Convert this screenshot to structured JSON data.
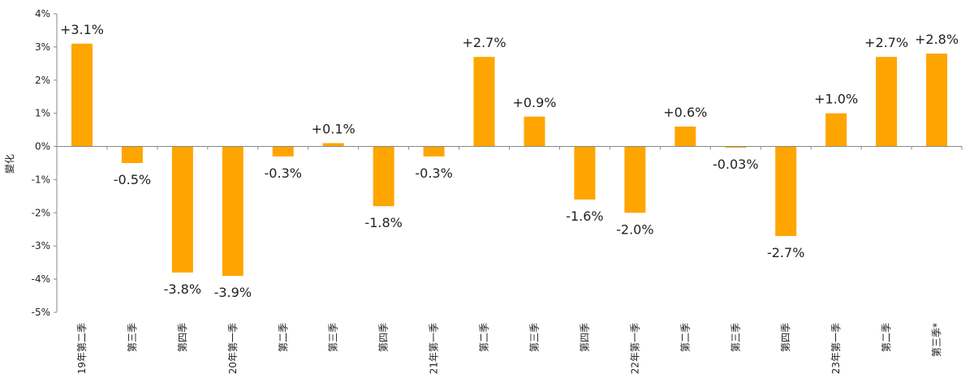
{
  "chart_data": {
    "type": "bar",
    "ylabel": "變化",
    "ylim": [
      -5,
      4
    ],
    "ytick_values": [
      4,
      3,
      2,
      1,
      0,
      -1,
      -2,
      -3,
      -4,
      -5
    ],
    "ytick_labels": [
      "4%",
      "3%",
      "2%",
      "1%",
      "0%",
      "-1%",
      "-2%",
      "-3%",
      "-4%",
      "-5%"
    ],
    "bar_color": "#FFA500",
    "categories": [
      "19年第二季",
      "第三季",
      "第四季",
      "20年第一季",
      "第二季",
      "第三季",
      "第四季",
      "21年第一季",
      "第二季",
      "第三季",
      "第四季",
      "22年第一季",
      "第二季",
      "第三季",
      "第四季",
      "23年第一季",
      "第二季",
      "第三季*"
    ],
    "values": [
      3.1,
      -0.5,
      -3.8,
      -3.9,
      -0.3,
      0.1,
      -1.8,
      -0.3,
      2.7,
      0.9,
      -1.6,
      -2.0,
      0.6,
      -0.03,
      -2.7,
      1.0,
      2.7,
      2.8
    ],
    "data_labels": [
      "+3.1%",
      "-0.5%",
      "-3.8%",
      "-3.9%",
      "-0.3%",
      "+0.1%",
      "-1.8%",
      "-0.3%",
      "+2.7%",
      "+0.9%",
      "-1.6%",
      "-2.0%",
      "+0.6%",
      "-0.03%",
      "-2.7%",
      "+1.0%",
      "+2.7%",
      "+2.8%"
    ],
    "grid": false
  }
}
